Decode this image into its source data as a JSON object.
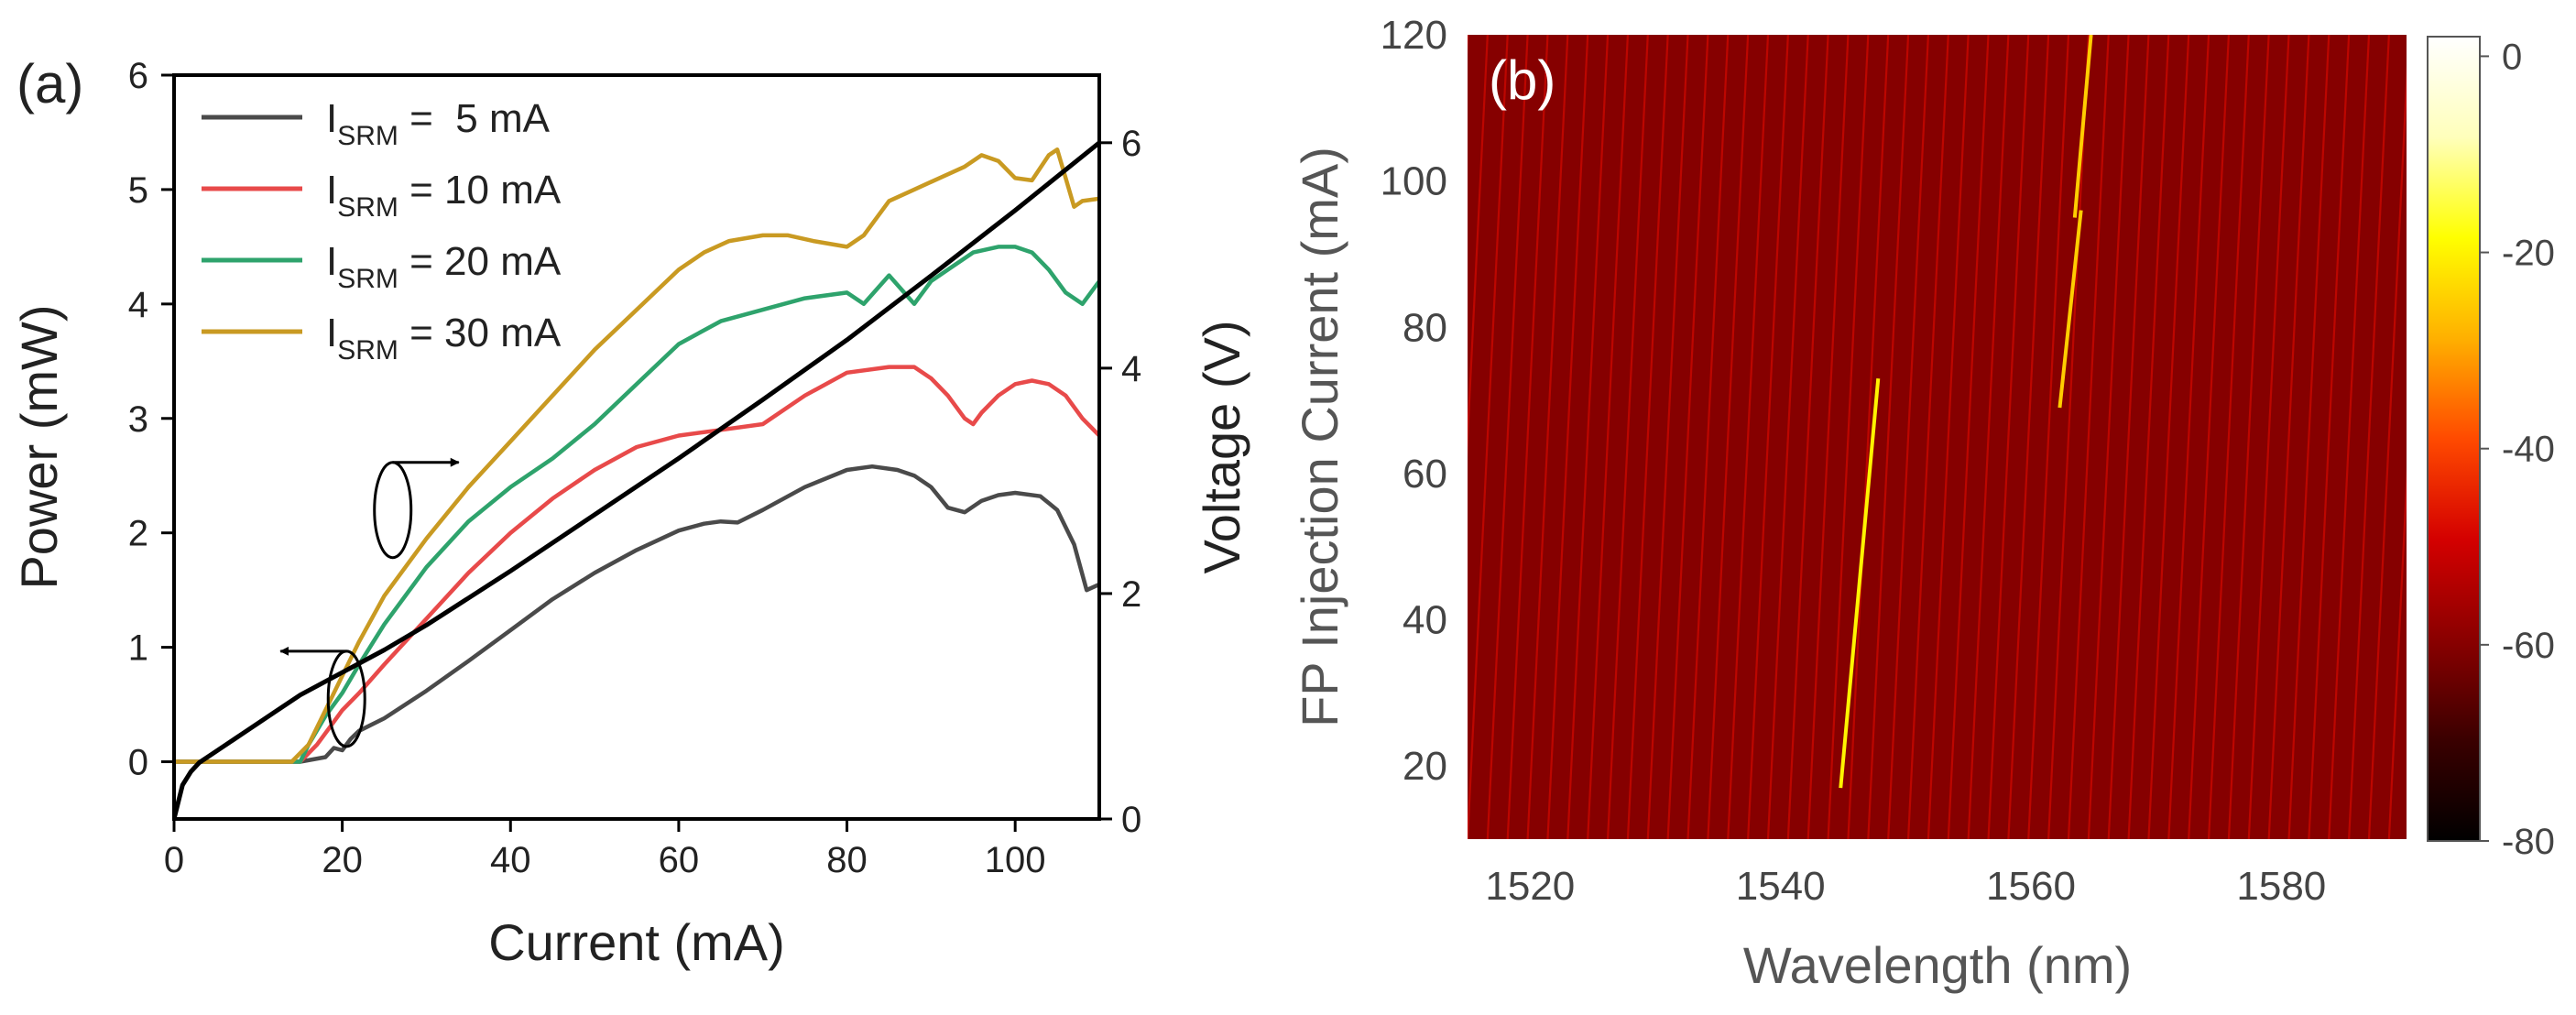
{
  "chart_data": [
    {
      "panel_label": "(a)",
      "type": "line",
      "xlabel": "Current (mA)",
      "ylabel": "Power (mW)",
      "y2label": "Voltage (V)",
      "xlim": [
        0,
        110
      ],
      "ylim": [
        -0.5,
        6
      ],
      "y2lim": [
        0,
        6.6
      ],
      "xticks": [
        "0",
        "20",
        "40",
        "60",
        "80",
        "100"
      ],
      "yticks": [
        "0",
        "1",
        "2",
        "3",
        "4",
        "5",
        "6"
      ],
      "y2ticks": [
        "0",
        "2",
        "4",
        "6"
      ],
      "grid": false,
      "legend_position": "top-left",
      "series": [
        {
          "name": "I_SRM = 5 mA",
          "legend_main": "I",
          "legend_sub": "SRM",
          "legend_value": " =  5 mA",
          "color": "#4a4a4a",
          "axis": "left",
          "x": [
            0,
            15,
            18,
            19,
            20,
            21,
            22,
            25,
            30,
            35,
            40,
            45,
            50,
            55,
            60,
            63,
            65,
            67,
            70,
            75,
            80,
            83,
            86,
            88,
            90,
            92,
            94,
            96,
            98,
            100,
            103,
            105,
            107,
            108.5,
            110
          ],
          "y": [
            0,
            0,
            0.04,
            0.12,
            0.1,
            0.2,
            0.27,
            0.38,
            0.62,
            0.88,
            1.15,
            1.42,
            1.65,
            1.85,
            2.02,
            2.08,
            2.1,
            2.09,
            2.2,
            2.4,
            2.55,
            2.58,
            2.55,
            2.5,
            2.4,
            2.22,
            2.18,
            2.28,
            2.33,
            2.35,
            2.32,
            2.2,
            1.9,
            1.5,
            1.55
          ]
        },
        {
          "name": "I_SRM = 10 mA",
          "legend_main": "I",
          "legend_sub": "SRM",
          "legend_value": " = 10 mA",
          "color": "#e84a4a",
          "axis": "left",
          "x": [
            0,
            15,
            17,
            19,
            20,
            22,
            25,
            30,
            35,
            40,
            45,
            50,
            55,
            60,
            65,
            70,
            75,
            80,
            85,
            88,
            90,
            92,
            94,
            95,
            96,
            98,
            100,
            102,
            104,
            106,
            108,
            110
          ],
          "y": [
            0,
            0,
            0.15,
            0.35,
            0.45,
            0.6,
            0.85,
            1.25,
            1.65,
            2.0,
            2.3,
            2.55,
            2.75,
            2.85,
            2.9,
            2.95,
            3.2,
            3.4,
            3.45,
            3.45,
            3.35,
            3.2,
            3.0,
            2.95,
            3.05,
            3.2,
            3.3,
            3.33,
            3.3,
            3.2,
            3.0,
            2.85
          ]
        },
        {
          "name": "I_SRM = 20 mA",
          "legend_main": "I",
          "legend_sub": "SRM",
          "legend_value": " = 20 mA",
          "color": "#2ea36c",
          "axis": "left",
          "x": [
            0,
            15,
            16,
            18,
            20,
            22,
            25,
            30,
            35,
            40,
            45,
            50,
            55,
            60,
            65,
            70,
            75,
            80,
            82,
            85,
            88,
            90,
            92,
            95,
            98,
            100,
            102,
            104,
            106,
            108,
            110
          ],
          "y": [
            0,
            0,
            0.15,
            0.4,
            0.6,
            0.85,
            1.2,
            1.7,
            2.1,
            2.4,
            2.65,
            2.95,
            3.3,
            3.65,
            3.85,
            3.95,
            4.05,
            4.1,
            4.0,
            4.25,
            4.0,
            4.2,
            4.3,
            4.45,
            4.5,
            4.5,
            4.45,
            4.3,
            4.1,
            4.0,
            4.2
          ]
        },
        {
          "name": "I_SRM = 30 mA",
          "legend_main": "I",
          "legend_sub": "SRM",
          "legend_value": " = 30 mA",
          "color": "#c99a22",
          "axis": "left",
          "x": [
            0,
            14,
            16,
            18,
            20,
            22,
            25,
            30,
            35,
            40,
            45,
            50,
            55,
            60,
            63,
            66,
            70,
            73,
            76,
            80,
            82,
            85,
            88,
            91,
            94,
            96,
            98,
            100,
            102,
            104,
            105,
            106,
            107,
            108,
            110
          ],
          "y": [
            0,
            0,
            0.15,
            0.45,
            0.75,
            1.05,
            1.45,
            1.95,
            2.4,
            2.8,
            3.2,
            3.6,
            3.95,
            4.3,
            4.45,
            4.55,
            4.6,
            4.6,
            4.55,
            4.5,
            4.6,
            4.9,
            5.0,
            5.1,
            5.2,
            5.3,
            5.25,
            5.1,
            5.08,
            5.3,
            5.35,
            5.1,
            4.85,
            4.9,
            4.92
          ]
        },
        {
          "name": "Voltage",
          "color": "#000000",
          "axis": "right",
          "x": [
            0,
            1,
            2,
            3,
            5,
            8,
            10,
            12,
            15,
            20,
            25,
            30,
            40,
            50,
            60,
            70,
            80,
            90,
            100,
            110
          ],
          "y": [
            0.0,
            0.3,
            0.42,
            0.5,
            0.6,
            0.75,
            0.85,
            0.95,
            1.1,
            1.3,
            1.5,
            1.72,
            2.2,
            2.7,
            3.2,
            3.72,
            4.25,
            4.82,
            5.4,
            6.0
          ]
        }
      ],
      "annotations": [
        {
          "type": "ellipse-arrow",
          "target": "right",
          "at_x": 26,
          "at_y": 2.2
        },
        {
          "type": "ellipse-arrow",
          "target": "left",
          "at_x": 20.5,
          "at_y": 0.55
        }
      ]
    },
    {
      "panel_label": "(b)",
      "type": "heatmap",
      "xlabel": "Wavelength (nm)",
      "ylabel": "FP Injection Current (mA)",
      "xlim": [
        1515,
        1590
      ],
      "ylim": [
        10,
        120
      ],
      "xticks": [
        "1520",
        "1540",
        "1560",
        "1580"
      ],
      "yticks": [
        "20",
        "40",
        "60",
        "80",
        "100",
        "120"
      ],
      "colorbar": {
        "range": [
          -80,
          2
        ],
        "ticks": [
          "0",
          "-20",
          "-40",
          "-60",
          "-80"
        ],
        "colormap": [
          "#000000",
          "#3a0000",
          "#8a0000",
          "#d40000",
          "#ff4a00",
          "#ffb000",
          "#ffff00",
          "#ffffbb",
          "#ffffff"
        ]
      },
      "background_level": -60,
      "fp_mode_spacing_nm": 1.6,
      "fp_mode_drift_nm": 3.2,
      "lasing_lines": [
        {
          "x": [
            1544.8,
            1547.8
          ],
          "y": [
            17,
            73
          ],
          "level": -20
        },
        {
          "x": [
            1562.3,
            1564.0
          ],
          "y": [
            69,
            96
          ],
          "level": -25
        },
        {
          "x": [
            1563.5,
            1564.8
          ],
          "y": [
            95,
            120
          ],
          "level": -25
        }
      ]
    }
  ]
}
